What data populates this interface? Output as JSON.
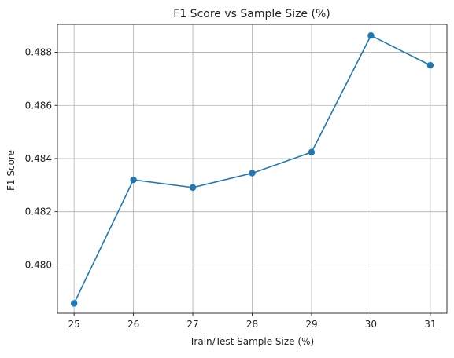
{
  "chart_data": {
    "type": "line",
    "title": "F1 Score vs Sample Size (%)",
    "xlabel": "Train/Test Sample Size (%)",
    "ylabel": "F1 Score",
    "x": [
      25,
      26,
      27,
      28,
      29,
      30,
      31
    ],
    "series": [
      {
        "values": [
          0.47855,
          0.4832,
          0.48291,
          0.48345,
          0.48424,
          0.48863,
          0.48751
        ],
        "color": "#1f77b4",
        "marker": "circle"
      }
    ],
    "xlim": [
      24.72,
      31.28
    ],
    "ylim": [
      0.47818,
      0.48905
    ],
    "xticks": [
      "25",
      "26",
      "27",
      "28",
      "29",
      "30",
      "31"
    ],
    "yticks": [
      "0.480",
      "0.482",
      "0.484",
      "0.486",
      "0.488"
    ],
    "ytick_values": [
      0.48,
      0.482,
      0.484,
      0.486,
      0.488
    ],
    "grid": true,
    "legend": "none"
  }
}
